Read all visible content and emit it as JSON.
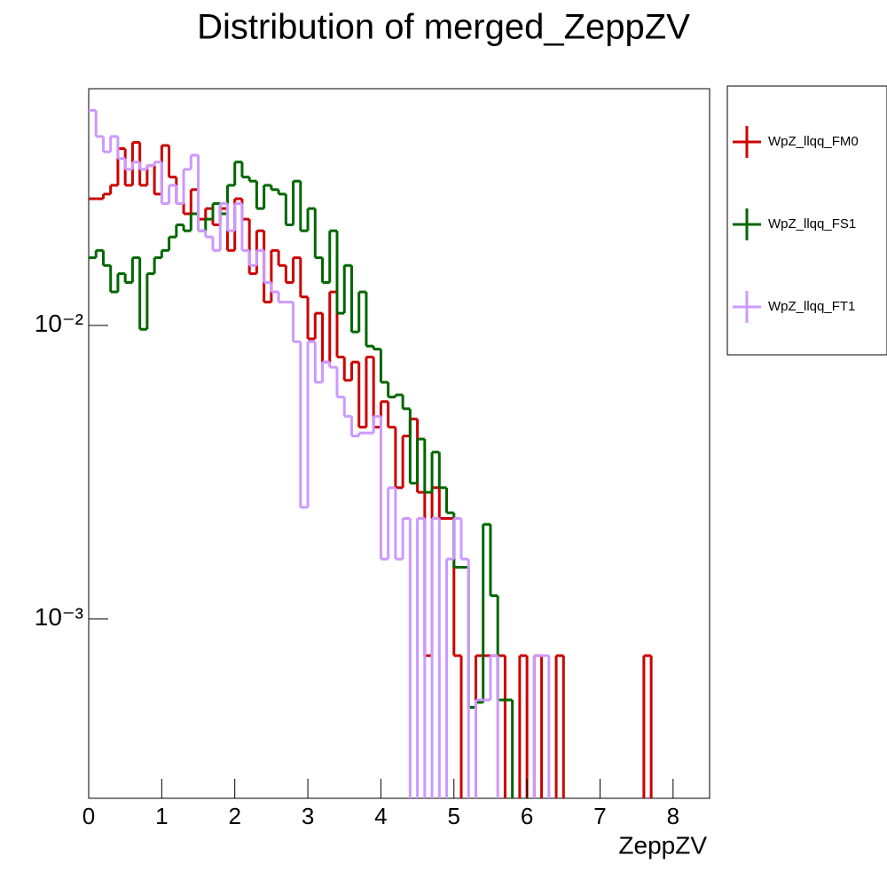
{
  "chart_data": {
    "type": "histogram",
    "title": "Distribution of merged_ZeppZV",
    "x_label": "ZeppZV",
    "log_y": true,
    "legend_position": "outside-right",
    "bins": [
      0,
      0.1,
      0.2,
      0.3,
      0.4,
      0.5,
      0.6,
      0.7,
      0.8,
      0.9,
      1,
      1.1,
      1.2,
      1.3,
      1.4,
      1.5,
      1.6,
      1.7,
      1.8,
      1.9,
      2,
      2.1,
      2.2,
      2.3,
      2.4,
      2.5,
      2.6,
      2.7,
      2.8,
      2.9,
      3,
      3.1,
      3.2,
      3.3,
      3.4,
      3.5,
      3.6,
      3.7,
      3.8,
      3.9,
      4,
      4.1,
      4.2,
      4.3,
      4.4,
      4.5,
      4.6,
      4.7,
      4.8,
      4.9,
      5,
      5.1,
      5.2,
      5.3,
      5.4,
      5.5,
      5.6,
      5.7,
      5.8,
      5.9,
      6,
      6.1,
      6.2,
      6.3,
      6.4,
      6.5,
      6.6,
      6.7,
      6.8,
      6.9,
      7,
      7.1,
      7.2,
      7.3,
      7.4,
      7.5,
      7.6,
      7.7,
      7.8,
      7.9,
      8,
      8.1,
      8.2,
      8.3,
      8.4,
      8.5
    ],
    "series": [
      {
        "name": "WpZ_llqq_FM0",
        "color": "#cc0000",
        "values": [
          0.027,
          0.027,
          0.028,
          0.03,
          0.04,
          0.03,
          0.042,
          0.03,
          0.035,
          0.028,
          0.041,
          0.032,
          0.026,
          0.024,
          0.029,
          0.023,
          0.025,
          0.022,
          0.025,
          0.018,
          0.027,
          0.023,
          0.015,
          0.021,
          0.012,
          0.018,
          0.016,
          0.014,
          0.017,
          0.0125,
          0.009,
          0.011,
          0.0075,
          0.013,
          0.0078,
          0.0065,
          0.0075,
          0.0045,
          0.0078,
          0.0045,
          0.0055,
          0.0045,
          0.0028,
          0.0042,
          0.0048,
          0.0027,
          0.00075,
          0.0028,
          0.0022,
          0.0022,
          0.00075,
          0,
          0,
          0.00075,
          0.00075,
          0.00075,
          0.00075,
          0,
          0,
          0.00075,
          0,
          0.00075,
          0,
          0,
          0.00075,
          0,
          0,
          0,
          0,
          0,
          0,
          0,
          0,
          0,
          0,
          0,
          0.00075,
          0,
          0,
          0,
          0,
          0,
          0,
          0,
          0
        ]
      },
      {
        "name": "WpZ_llqq_FS1",
        "color": "#006600",
        "values": [
          0.017,
          0.018,
          0.016,
          0.013,
          0.015,
          0.014,
          0.017,
          0.0097,
          0.015,
          0.017,
          0.018,
          0.02,
          0.022,
          0.021,
          0.024,
          0.021,
          0.023,
          0.026,
          0.024,
          0.03,
          0.036,
          0.032,
          0.031,
          0.025,
          0.03,
          0.029,
          0.028,
          0.022,
          0.031,
          0.021,
          0.025,
          0.017,
          0.014,
          0.021,
          0.011,
          0.016,
          0.0095,
          0.013,
          0.0085,
          0.0083,
          0.0064,
          0.0057,
          0.0058,
          0.0052,
          0.0029,
          0.0041,
          0.0027,
          0.0037,
          0.0028,
          0.0023,
          0.0015,
          0.0015,
          0.0005,
          0.00052,
          0.0021,
          0.0012,
          0.00053,
          0.00053,
          0,
          0,
          0,
          0,
          0,
          0,
          0,
          0,
          0,
          0,
          0,
          0,
          0,
          0,
          0,
          0,
          0,
          0,
          0,
          0,
          0,
          0,
          0,
          0,
          0,
          0,
          0
        ]
      },
      {
        "name": "WpZ_llqq_FT1",
        "color": "#cc99ff",
        "values": [
          0.054,
          0.044,
          0.039,
          0.044,
          0.037,
          0.034,
          0.036,
          0.034,
          0.035,
          0.036,
          0.026,
          0.03,
          0.026,
          0.034,
          0.038,
          0.021,
          0.02,
          0.018,
          0.026,
          0.021,
          0.026,
          0.018,
          0.016,
          0.018,
          0.014,
          0.013,
          0.012,
          0.012,
          0.0088,
          0.0024,
          0.0088,
          0.0064,
          0.0075,
          0.0072,
          0.0057,
          0.0049,
          0.0042,
          0.0043,
          0.0043,
          0.0049,
          0.0016,
          0.0028,
          0.0016,
          0.0022,
          0,
          0.0022,
          0,
          0.0022,
          0,
          0.0016,
          0.0022,
          0.0016,
          0,
          0.00053,
          0.00053,
          0.00075,
          0,
          0,
          0,
          0,
          0,
          0.00075,
          0.00075,
          0,
          0,
          0,
          0,
          0,
          0,
          0,
          0,
          0,
          0,
          0,
          0,
          0,
          0,
          0,
          0,
          0,
          0,
          0,
          0,
          0,
          0
        ]
      }
    ],
    "xlim": [
      0,
      8.5
    ],
    "xticks": [
      0,
      1,
      2,
      3,
      4,
      5,
      6,
      7,
      8
    ],
    "ylim": [
      0.000245,
      0.064
    ],
    "yticks": [
      {
        "value": 0.001,
        "label": "10⁻³"
      },
      {
        "value": 0.01,
        "label": "10⁻²"
      }
    ]
  }
}
